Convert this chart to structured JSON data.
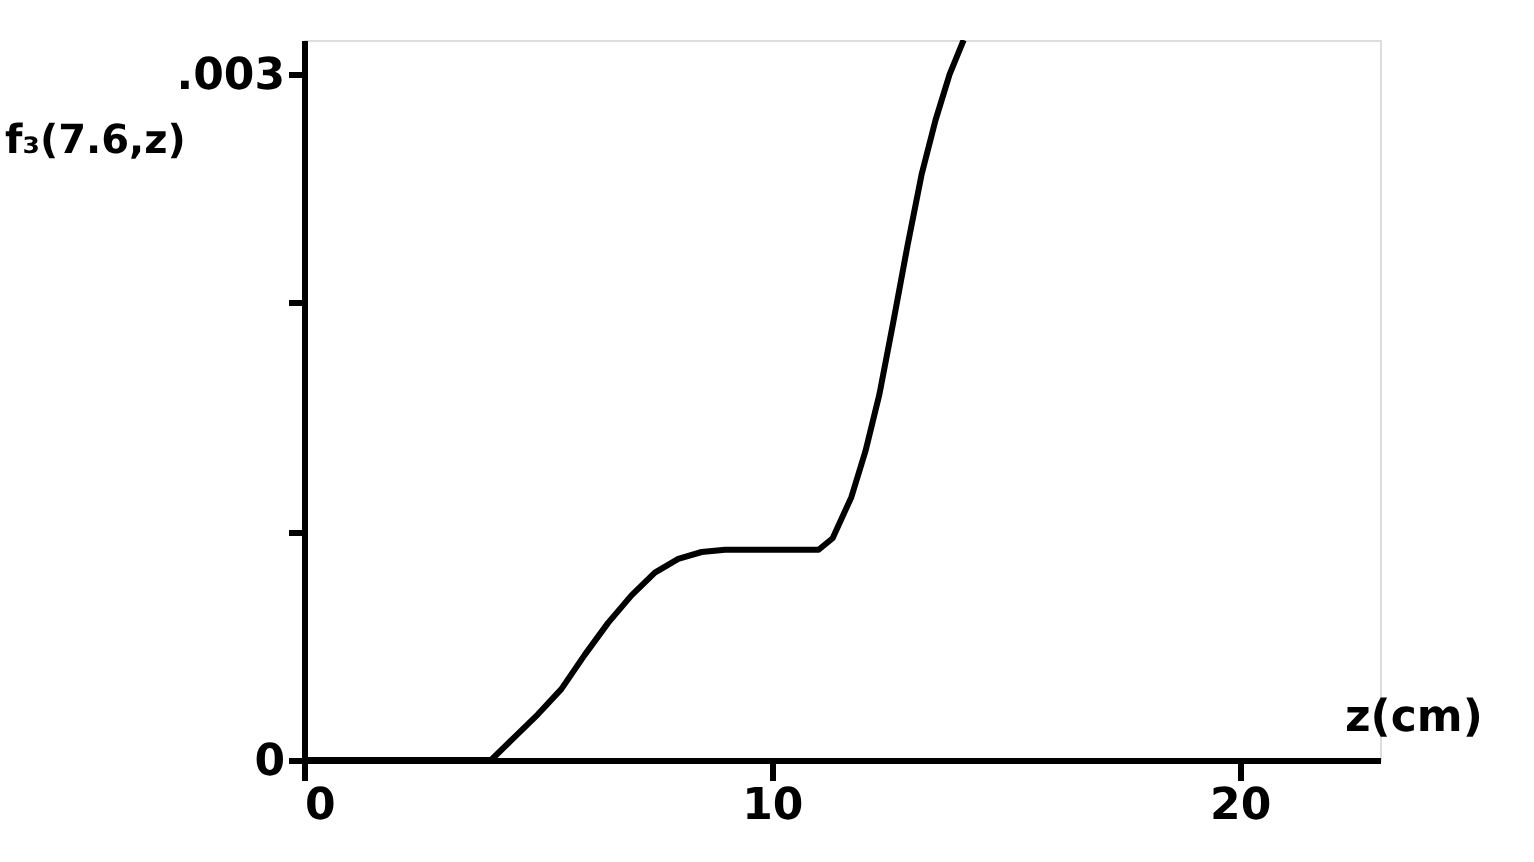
{
  "chart_data": {
    "type": "line",
    "xlabel": "z(cm)",
    "ylabel": "f₃(7.6,z)",
    "x": [
      0,
      2,
      3,
      3.5,
      4,
      4.5,
      5,
      5.5,
      6,
      6.5,
      7,
      7.5,
      8,
      8.5,
      9,
      10,
      11,
      11.3,
      11.7,
      12,
      12.3,
      12.6,
      12.9,
      13.2,
      13.5,
      13.8,
      14.1
    ],
    "series": [
      {
        "color": "#000000",
        "values": [
          0,
          0,
          0,
          0,
          0,
          0.0001,
          0.0002,
          0.00031,
          0.00046,
          0.0006,
          0.00072,
          0.00082,
          0.00088,
          0.00091,
          0.00092,
          0.00092,
          0.00092,
          0.00097,
          0.00115,
          0.00135,
          0.0016,
          0.00192,
          0.00225,
          0.00256,
          0.0028,
          0.003,
          0.00315
        ]
      }
    ],
    "xlim": [
      0,
      23
    ],
    "xticks": [
      0,
      10,
      20
    ],
    "ylim": [
      0,
      0.00315
    ],
    "yticks": [
      0,
      {
        "value": 0.001,
        "label": null
      },
      {
        "value": 0.002,
        "label": null
      },
      {
        "value": 0.003,
        "label": ".003"
      }
    ],
    "grid": false,
    "line_style": "solid",
    "marker": "none"
  }
}
